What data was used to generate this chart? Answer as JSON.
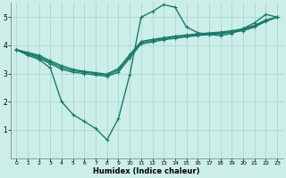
{
  "xlabel": "Humidex (Indice chaleur)",
  "bg_color": "#cceee8",
  "line_color": "#1a7a6a",
  "grid_color": "#aad8d0",
  "xlim": [
    -0.5,
    23.5
  ],
  "ylim": [
    0,
    5.5
  ],
  "yticks": [
    1,
    2,
    3,
    4,
    5
  ],
  "xticks": [
    0,
    1,
    2,
    3,
    4,
    5,
    6,
    7,
    8,
    9,
    10,
    11,
    12,
    13,
    14,
    15,
    16,
    17,
    18,
    19,
    20,
    21,
    22,
    23
  ],
  "series": [
    [
      3.85,
      3.65,
      3.5,
      3.2,
      2.0,
      1.55,
      1.3,
      1.05,
      0.65,
      1.4,
      2.95,
      5.0,
      5.2,
      5.45,
      5.35,
      4.65,
      4.45,
      4.38,
      4.35,
      4.42,
      4.6,
      4.8,
      5.1,
      5.0
    ],
    [
      3.85,
      3.7,
      3.55,
      3.35,
      3.15,
      3.05,
      3.0,
      2.95,
      2.9,
      3.05,
      3.55,
      4.05,
      4.12,
      4.2,
      4.25,
      4.3,
      4.35,
      4.38,
      4.42,
      4.46,
      4.52,
      4.65,
      4.85,
      5.0
    ],
    [
      3.85,
      3.72,
      3.6,
      3.4,
      3.22,
      3.1,
      3.05,
      3.0,
      2.95,
      3.12,
      3.62,
      4.1,
      4.17,
      4.23,
      4.3,
      4.33,
      4.38,
      4.41,
      4.44,
      4.49,
      4.56,
      4.68,
      4.88,
      5.0
    ],
    [
      3.85,
      3.75,
      3.65,
      3.45,
      3.28,
      3.15,
      3.08,
      3.03,
      2.98,
      3.18,
      3.67,
      4.14,
      4.21,
      4.27,
      4.33,
      4.37,
      4.41,
      4.44,
      4.47,
      4.52,
      4.59,
      4.71,
      4.9,
      5.0
    ]
  ]
}
